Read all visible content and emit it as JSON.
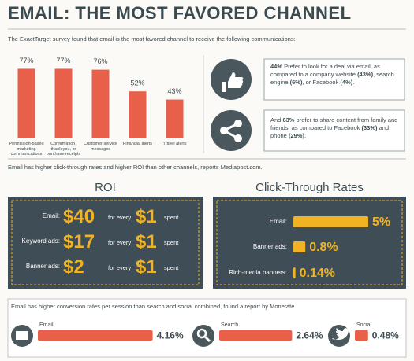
{
  "title": "EMAIL: THE MOST FAVORED CHANNEL",
  "intro": "The ExactTarget survey found that email is the most favored channel to receive the following communications:",
  "callouts": [
    {
      "runs": [
        {
          "text": "44%",
          "bold": true
        },
        {
          "text": " Prefer to look for a deal via email, as compared to a company website "
        },
        {
          "text": "(43%)",
          "bold": true
        },
        {
          "text": ", search engine "
        },
        {
          "text": "(6%)",
          "bold": true
        },
        {
          "text": ", or Facebook "
        },
        {
          "text": "(4%)",
          "bold": true
        },
        {
          "text": "."
        }
      ]
    },
    {
      "runs": [
        {
          "text": "And "
        },
        {
          "text": "63%",
          "bold": true
        },
        {
          "text": " prefer to share content from family and friends, as compared to Facebook "
        },
        {
          "text": "(33%)",
          "bold": true
        },
        {
          "text": " and phone "
        },
        {
          "text": "(29%)",
          "bold": true
        },
        {
          "text": "."
        }
      ]
    }
  ],
  "statement": "Email has higher click-through rates and higher ROI than other channels, reports Mediapost.com.",
  "roi": {
    "title": "ROI",
    "rows": [
      {
        "label": "Email:",
        "amount": "$40",
        "connector": "for every",
        "unit": "$1",
        "suffix": "spent"
      },
      {
        "label": "Keyword ads:",
        "amount": "$17",
        "connector": "for every",
        "unit": "$1",
        "suffix": "spent"
      },
      {
        "label": "Banner ads:",
        "amount": "$2",
        "connector": "for every",
        "unit": "$1",
        "suffix": "spent"
      }
    ]
  },
  "chart_data": [
    {
      "type": "bar",
      "orientation": "vertical",
      "categories": [
        "Permission-based marketing communications",
        "Confirmation, thank you, or purchase receipts",
        "Customer service messages",
        "Financial alerts",
        "Travel alerts"
      ],
      "values": [
        77,
        77,
        76,
        52,
        43
      ],
      "value_labels": [
        "77%",
        "77%",
        "76%",
        "52%",
        "43%"
      ],
      "color": "#e8604a"
    },
    {
      "type": "bar",
      "orientation": "horizontal",
      "title": "Click-Through Rates",
      "categories": [
        "Email:",
        "Banner ads:",
        "Rich-media banners:"
      ],
      "values": [
        5,
        0.8,
        0.14
      ],
      "value_labels": [
        "5%",
        "0.8%",
        "0.14%"
      ],
      "color": "#f0b323"
    },
    {
      "type": "bar",
      "orientation": "horizontal",
      "title": "Email has higher conversion rates per session than search and social combined, found a report by Monetate.",
      "categories": [
        "Email",
        "Search",
        "Social"
      ],
      "values": [
        4.16,
        2.64,
        0.48
      ],
      "value_labels": [
        "4.16%",
        "2.64%",
        "0.48%"
      ],
      "color": "#e8604a"
    }
  ]
}
